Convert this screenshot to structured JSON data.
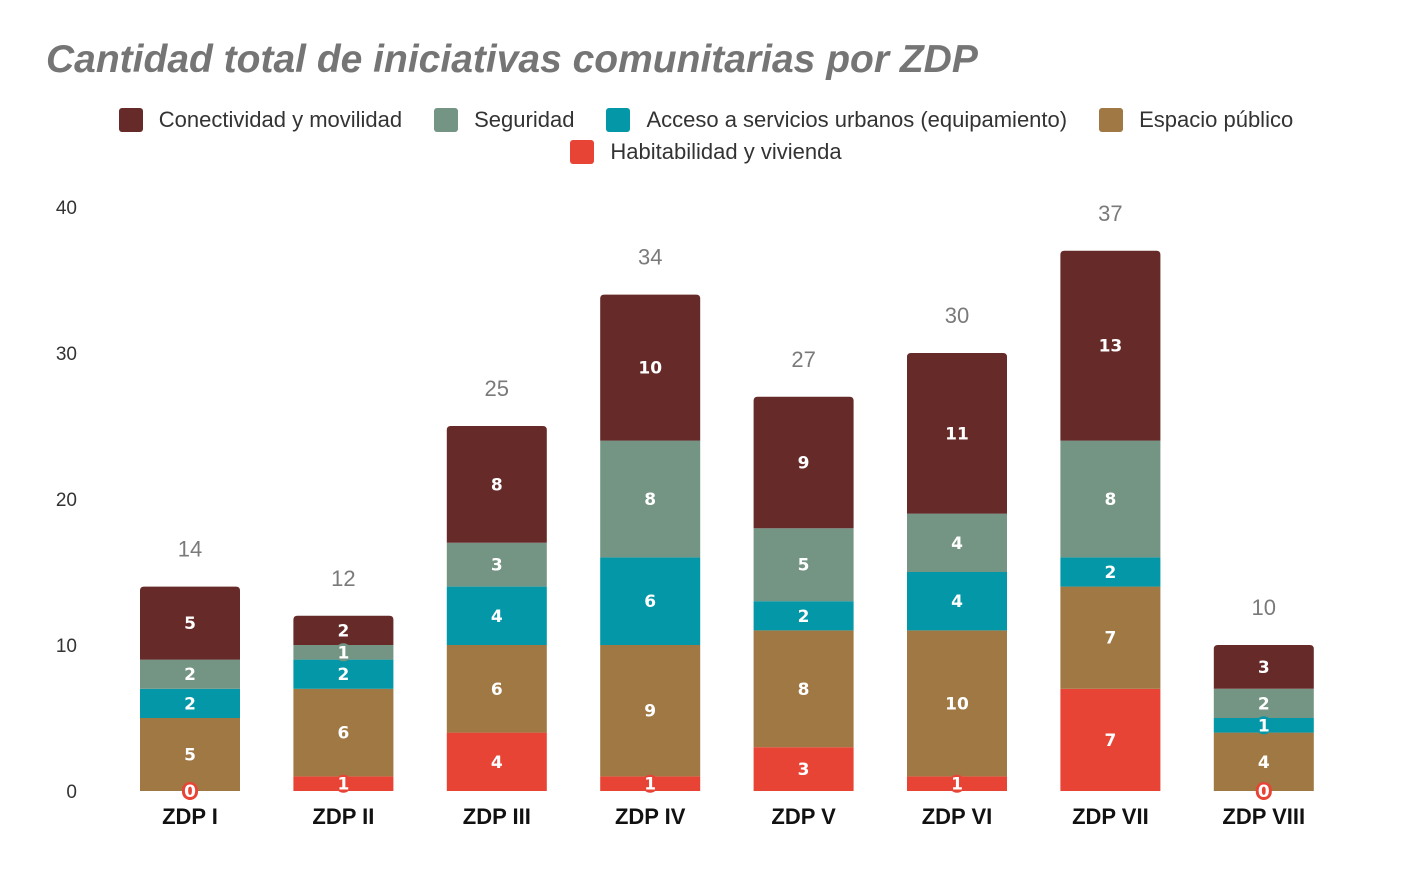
{
  "chart_data": {
    "type": "bar",
    "stacked": true,
    "title": "Cantidad total de iniciativas comunitarias por ZDP",
    "xlabel": "",
    "ylabel": "",
    "ylim": [
      0,
      40
    ],
    "yticks": [
      0,
      10,
      20,
      30,
      40
    ],
    "grid": false,
    "legend_position": "top-center",
    "categories": [
      "ZDP I",
      "ZDP II",
      "ZDP III",
      "ZDP IV",
      "ZDP V",
      "ZDP VI",
      "ZDP VII",
      "ZDP VIII"
    ],
    "series": [
      {
        "name": "Habitabilidad y vivienda",
        "color": "#e84435",
        "values": [
          0,
          1,
          4,
          1,
          3,
          1,
          7,
          0
        ]
      },
      {
        "name": "Espacio público",
        "color": "#a07843",
        "values": [
          5,
          6,
          6,
          9,
          8,
          10,
          7,
          4
        ]
      },
      {
        "name": "Acceso a servicios urbanos (equipamiento)",
        "color": "#0397a7",
        "values": [
          2,
          2,
          4,
          6,
          2,
          4,
          2,
          1
        ]
      },
      {
        "name": "Seguridad",
        "color": "#749584",
        "values": [
          2,
          1,
          3,
          8,
          5,
          4,
          8,
          2
        ]
      },
      {
        "name": "Conectividad y movilidad",
        "color": "#662a28",
        "values": [
          5,
          2,
          8,
          10,
          9,
          11,
          13,
          3
        ]
      }
    ],
    "totals": [
      14,
      12,
      25,
      34,
      27,
      30,
      37,
      10
    ],
    "legend_order": [
      "Conectividad y movilidad",
      "Seguridad",
      "Acceso a servicios urbanos (equipamiento)",
      "Espacio público",
      "Habitabilidad y vivienda"
    ]
  }
}
